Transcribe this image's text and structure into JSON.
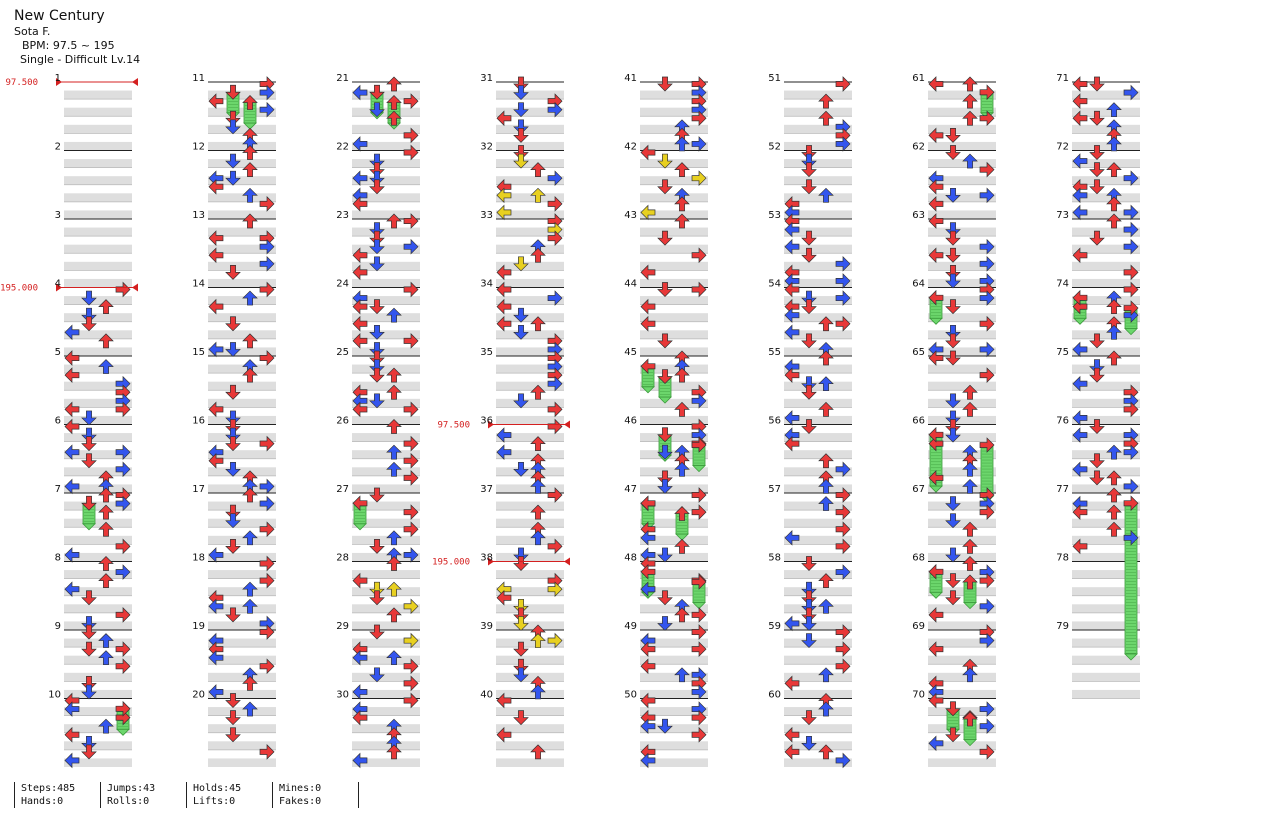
{
  "song": {
    "title": "New Century",
    "artist": "Sota F.",
    "bpm": "BPM: 97.5 ~ 195",
    "difficulty": "Single - Difficult Lv.14"
  },
  "colors": {
    "quarter": "#e83838",
    "eighth": "#3355ee",
    "sixteenth": "#e8d020",
    "hold": "#6cd66c",
    "bpm_marker": "#d42020"
  },
  "measures": {
    "first": 1,
    "last": 79,
    "per_column": 10
  },
  "bpm_changes": [
    {
      "measure": 1,
      "label": "97.500"
    },
    {
      "measure": 4,
      "label": "195.000"
    },
    {
      "measure": 36,
      "label": "97.500"
    },
    {
      "measure": 38,
      "label": "195.000"
    }
  ],
  "stats": [
    [
      "Steps:485",
      "Hands:0"
    ],
    [
      "Jumps:43",
      "Rolls:0"
    ],
    [
      "Holds:45",
      "Lifts:0"
    ],
    [
      "Mines:0",
      "Fakes:0"
    ]
  ]
}
